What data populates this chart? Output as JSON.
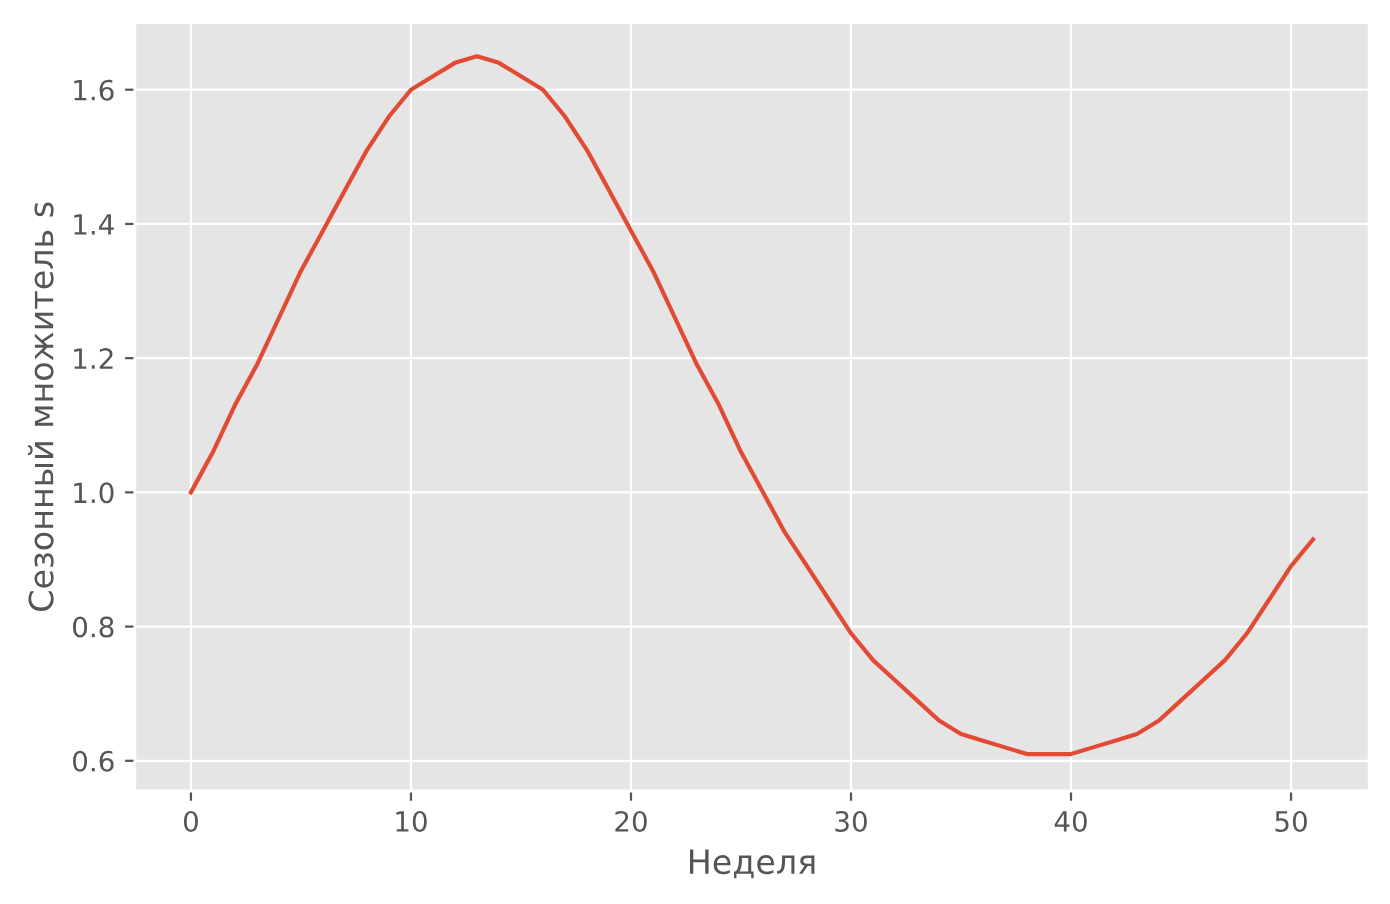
{
  "chart_data": {
    "type": "line",
    "xlabel": "Неделя",
    "ylabel": "Сезонный множитель s",
    "x": [
      0,
      1,
      2,
      3,
      4,
      5,
      6,
      7,
      8,
      9,
      10,
      11,
      12,
      13,
      14,
      15,
      16,
      17,
      18,
      19,
      20,
      21,
      22,
      23,
      24,
      25,
      26,
      27,
      28,
      29,
      30,
      31,
      32,
      33,
      34,
      35,
      36,
      37,
      38,
      39,
      40,
      41,
      42,
      43,
      44,
      45,
      46,
      47,
      48,
      49,
      50,
      51
    ],
    "series": [
      {
        "color": "#e24a33",
        "values": [
          1.0,
          1.06,
          1.13,
          1.19,
          1.26,
          1.33,
          1.39,
          1.45,
          1.51,
          1.56,
          1.6,
          1.62,
          1.64,
          1.65,
          1.64,
          1.62,
          1.6,
          1.56,
          1.51,
          1.45,
          1.39,
          1.33,
          1.26,
          1.19,
          1.13,
          1.06,
          1.0,
          0.94,
          0.89,
          0.84,
          0.79,
          0.75,
          0.72,
          0.69,
          0.66,
          0.64,
          0.63,
          0.62,
          0.61,
          0.61,
          0.61,
          0.62,
          0.63,
          0.64,
          0.66,
          0.69,
          0.72,
          0.75,
          0.79,
          0.84,
          0.89,
          0.93
        ]
      }
    ],
    "xlim": [
      -2.55,
      53.55
    ],
    "ylim": [
      0.555,
      1.7
    ],
    "xticks": [
      0,
      10,
      20,
      30,
      40,
      50
    ],
    "yticks": [
      {
        "value": 0.6,
        "label": "0.6"
      },
      {
        "value": 0.8,
        "label": "0.8"
      },
      {
        "value": 1.0,
        "label": "1.0"
      },
      {
        "value": 1.2,
        "label": "1.2"
      },
      {
        "value": 1.4,
        "label": "1.4"
      },
      {
        "value": 1.6,
        "label": "1.6"
      }
    ],
    "grid": true,
    "marker": "none",
    "line_style": "solid"
  }
}
